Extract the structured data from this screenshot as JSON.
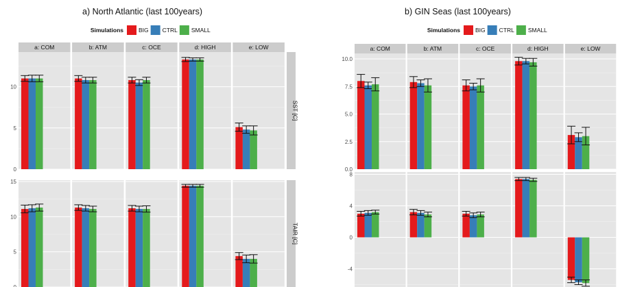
{
  "colors": {
    "BIG": "#e41a1c",
    "CTRL": "#377eb8",
    "SMALL": "#4daf4a",
    "panel_bg": "#e5e5e5",
    "strip_bg": "#cccccc",
    "grid": "#f2f2f2"
  },
  "chart_data": [
    {
      "type": "bar",
      "title": "a)  North Atlantic (last 100years)",
      "legend": {
        "title": "Simulations",
        "position": "top",
        "entries": [
          "BIG",
          "CTRL",
          "SMALL"
        ]
      },
      "facets": [
        "a: COM",
        "b: ATM",
        "c: OCE",
        "d: HIGH",
        "e: LOW"
      ],
      "rows": [
        {
          "label": "SST [C]",
          "ylim": [
            0,
            14.2
          ],
          "yticks": [
            0,
            5,
            10
          ],
          "series": [
            {
              "name": "BIG",
              "values": [
                11.0,
                11.0,
                10.8,
                13.3,
                5.1
              ],
              "errors": [
                0.35,
                0.35,
                0.35,
                0.25,
                0.5
              ]
            },
            {
              "name": "CTRL",
              "values": [
                11.0,
                10.8,
                10.5,
                13.3,
                4.8
              ],
              "errors": [
                0.4,
                0.35,
                0.35,
                0.2,
                0.45
              ]
            },
            {
              "name": "SMALL",
              "values": [
                11.0,
                10.8,
                10.8,
                13.3,
                4.7
              ],
              "errors": [
                0.4,
                0.35,
                0.35,
                0.2,
                0.55
              ]
            }
          ]
        },
        {
          "label": "TAIR [C]",
          "ylim": [
            0,
            15.2
          ],
          "yticks": [
            0,
            5,
            10,
            15
          ],
          "series": [
            {
              "name": "BIG",
              "values": [
                11.1,
                11.3,
                11.2,
                14.4,
                4.4
              ],
              "errors": [
                0.55,
                0.4,
                0.4,
                0.2,
                0.5
              ]
            },
            {
              "name": "CTRL",
              "values": [
                11.2,
                11.2,
                11.1,
                14.4,
                4.0
              ],
              "errors": [
                0.5,
                0.4,
                0.4,
                0.2,
                0.55
              ]
            },
            {
              "name": "SMALL",
              "values": [
                11.3,
                11.1,
                11.1,
                14.4,
                4.0
              ],
              "errors": [
                0.5,
                0.4,
                0.45,
                0.2,
                0.6
              ]
            }
          ]
        }
      ]
    },
    {
      "type": "bar",
      "title": "b)  GIN Seas (last 100years)",
      "legend": {
        "title": "Simulations",
        "position": "top",
        "entries": [
          "BIG",
          "CTRL",
          "SMALL"
        ]
      },
      "facets": [
        "a: COM",
        "b: ATM",
        "c: OCE",
        "d: HIGH",
        "e: LOW"
      ],
      "rows": [
        {
          "label": "",
          "ylim": [
            0,
            10.5
          ],
          "yticks": [
            0.0,
            2.5,
            5.0,
            7.5,
            10.0
          ],
          "ytick_labels": [
            "0.0",
            "2.5",
            "5.0",
            "7.5",
            "10.0"
          ],
          "series": [
            {
              "name": "BIG",
              "values": [
                8.0,
                7.9,
                7.6,
                9.8,
                3.1
              ],
              "errors": [
                0.6,
                0.5,
                0.5,
                0.35,
                0.8
              ]
            },
            {
              "name": "CTRL",
              "values": [
                7.6,
                7.8,
                7.5,
                9.8,
                2.9
              ],
              "errors": [
                0.3,
                0.3,
                0.3,
                0.25,
                0.4
              ]
            },
            {
              "name": "SMALL",
              "values": [
                7.7,
                7.6,
                7.6,
                9.7,
                3.0
              ],
              "errors": [
                0.6,
                0.6,
                0.6,
                0.35,
                0.8
              ]
            }
          ]
        },
        {
          "label": "",
          "ylim": [
            -6.3,
            8.3
          ],
          "yticks": [
            -4,
            0,
            4,
            8
          ],
          "series": [
            {
              "name": "BIG",
              "values": [
                3.0,
                3.2,
                3.0,
                7.4,
                -5.4
              ],
              "errors": [
                0.3,
                0.35,
                0.3,
                0.2,
                0.35
              ]
            },
            {
              "name": "CTRL",
              "values": [
                3.1,
                3.1,
                2.8,
                7.4,
                -5.7
              ],
              "errors": [
                0.3,
                0.3,
                0.3,
                0.2,
                0.3
              ]
            },
            {
              "name": "SMALL",
              "values": [
                3.2,
                2.9,
                2.9,
                7.3,
                -5.8
              ],
              "errors": [
                0.25,
                0.3,
                0.3,
                0.2,
                0.4
              ]
            }
          ]
        }
      ]
    }
  ]
}
